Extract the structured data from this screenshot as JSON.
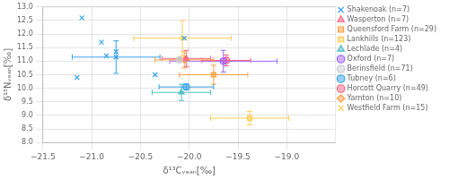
{
  "chart_data": {
    "type": "scatter",
    "xlabel": "δ¹³Cᵥₑₐₙ[‰]",
    "ylabel": "δ¹⁵Nᵥₑₐₙ[‰]",
    "xlim": [
      -21.5,
      -18.5
    ],
    "ylim": [
      8,
      13
    ],
    "xticks": [
      {
        "value": -21.5,
        "label": "−21.5"
      },
      {
        "value": -21.0,
        "label": "−21.0"
      },
      {
        "value": -20.5,
        "label": "−20.5"
      },
      {
        "value": -20.0,
        "label": "−20.0"
      },
      {
        "value": -19.5,
        "label": "−19.5"
      },
      {
        "value": -19.0,
        "label": "−19.0"
      }
    ],
    "yticks": [
      {
        "value": 8,
        "label": "8.0"
      },
      8.5,
      {
        "value": 9,
        "label": "9.0"
      },
      9.5,
      {
        "value": 10,
        "label": "10.0"
      },
      10.5,
      {
        "value": 11,
        "label": "11.0"
      },
      11.5,
      {
        "value": 12,
        "label": "12.0"
      },
      12.5,
      {
        "value": 13,
        "label": "13.0"
      }
    ],
    "grid": true,
    "legend": "upper right",
    "series": [
      {
        "name": "Shakenoak (n=7)",
        "marker": "x",
        "x": [
          -21.1,
          -20.9,
          -20.75,
          -20.85,
          -21.15,
          -20.35,
          -20.05,
          -20.75
        ],
        "values": [
          12.6,
          11.7,
          11.35,
          11.2,
          10.4,
          10.5,
          11.85,
          11.15
        ],
        "xerr": [
          null,
          null,
          null,
          null,
          null,
          null,
          null,
          0.45
        ],
        "yerr": [
          null,
          null,
          null,
          null,
          null,
          null,
          null,
          0.6
        ]
      },
      {
        "name": "Wasperton (n=7)",
        "marker": "triangle",
        "x": [
          -20.03
        ],
        "values": [
          11.1
        ],
        "xerr": [
          0.25
        ],
        "yerr": [
          0.3
        ]
      },
      {
        "name": "Queensford Farm (n=29)",
        "marker": "square",
        "x": [
          -19.75
        ],
        "values": [
          10.5
        ],
        "xerr": [
          0.35
        ],
        "yerr": [
          0.35
        ]
      },
      {
        "name": "Lankhills (n=123)",
        "marker": "square",
        "x": [
          -19.38
        ],
        "values": [
          8.9
        ],
        "xerr": [
          0.4
        ],
        "yerr": [
          0.25
        ]
      },
      {
        "name": "Lechlade (n=4)",
        "marker": "triangle",
        "x": [
          -20.08
        ],
        "values": [
          9.85
        ],
        "xerr": [
          0.3
        ],
        "yerr": [
          0.3
        ]
      },
      {
        "name": "Oxford (n=7)",
        "marker": "circle",
        "x": [
          -19.65
        ],
        "values": [
          11.0
        ],
        "xerr": [
          0.55
        ],
        "yerr": [
          0.4
        ]
      },
      {
        "name": "Berinsfield (n=71)",
        "marker": "circle",
        "x": [
          -20.1
        ],
        "values": [
          11.05
        ],
        "xerr": [
          0.1
        ],
        "yerr": [
          0.07
        ]
      },
      {
        "name": "Tubney (n=6)",
        "marker": "circle",
        "x": [
          -20.03
        ],
        "values": [
          10.05
        ],
        "xerr": [
          0.28
        ],
        "yerr": [
          0.1
        ]
      },
      {
        "name": "Horcott Quarry (n=49)",
        "marker": "circle",
        "x": [
          -19.62
        ],
        "values": [
          11.03
        ],
        "xerr": [
          0.25
        ],
        "yerr": [
          0.2
        ]
      },
      {
        "name": "Yarnton (n=10)",
        "marker": "diamond",
        "x": [
          -20.05
        ],
        "values": [
          11.05
        ],
        "xerr": [
          0.3
        ],
        "yerr": [
          0.3
        ]
      },
      {
        "name": "Westfield Farm (n=15)",
        "marker": "x",
        "x": [
          -20.07
        ],
        "values": [
          11.85
        ],
        "xerr": [
          0.5
        ],
        "yerr": [
          0.65
        ]
      }
    ]
  }
}
